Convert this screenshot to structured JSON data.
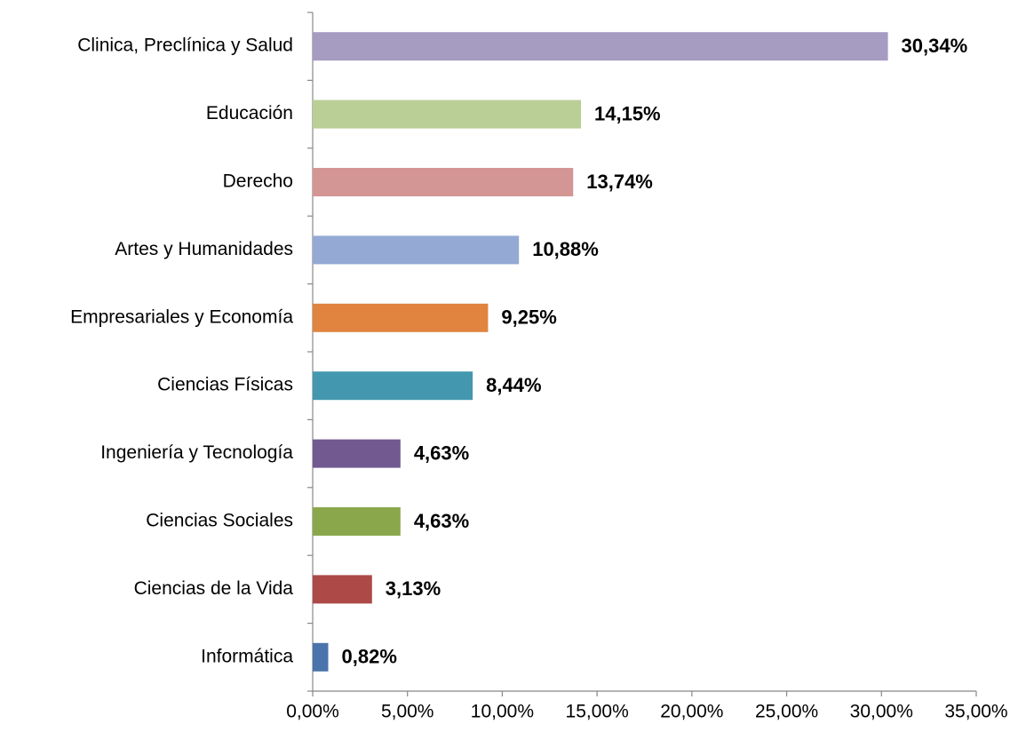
{
  "chart_data": {
    "type": "hbar",
    "categories": [
      "Clinica, Preclínica y Salud",
      "Educación",
      "Derecho",
      "Artes y Humanidades",
      "Empresariales y Economía",
      "Ciencias Físicas",
      "Ingeniería y Tecnología",
      "Ciencias Sociales",
      "Ciencias de la Vida",
      "Informática"
    ],
    "values": [
      30.34,
      14.15,
      13.74,
      10.88,
      9.25,
      8.44,
      4.63,
      4.63,
      3.13,
      0.82
    ],
    "value_labels": [
      "30,34%",
      "14,15%",
      "13,74%",
      "10,88%",
      "9,25%",
      "8,44%",
      "4,63%",
      "4,63%",
      "3,13%",
      "0,82%"
    ],
    "colors": [
      "#a69bc1",
      "#bacf96",
      "#d49595",
      "#94aad4",
      "#e0843f",
      "#4398af",
      "#725990",
      "#8aa84b",
      "#ad4947",
      "#4a74ab"
    ],
    "xlim": [
      0,
      35
    ],
    "xticks": [
      {
        "value": 0,
        "label": "0,00%"
      },
      {
        "value": 5,
        "label": "5,00%"
      },
      {
        "value": 10,
        "label": "10,00%"
      },
      {
        "value": 15,
        "label": "15,00%"
      },
      {
        "value": 20,
        "label": "20,00%"
      },
      {
        "value": 25,
        "label": "25,00%"
      },
      {
        "value": 30,
        "label": "30,00%"
      },
      {
        "value": 35,
        "label": "35,00%"
      }
    ],
    "grid": false
  }
}
